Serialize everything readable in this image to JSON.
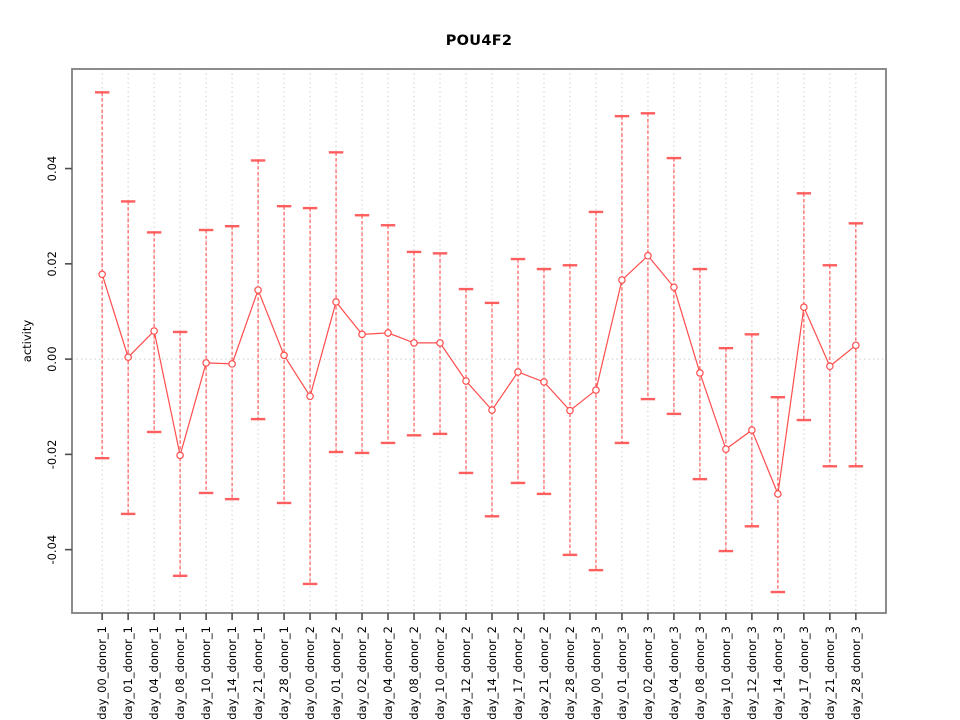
{
  "page": {
    "background": "#FFFFFF"
  },
  "chart_data": {
    "type": "line",
    "title": "POU4F2",
    "xlabel": "",
    "ylabel": "activity",
    "legend": "none",
    "marker": "open-circle",
    "error_bars": true,
    "grid": {
      "vertical": "dotted",
      "zero_line": "dotted",
      "horizontal": "off"
    },
    "ylim": [
      -0.0533,
      0.0609
    ],
    "yticks": [
      -0.04,
      -0.02,
      0,
      0.02,
      0.04
    ],
    "categories": [
      "day_00_donor_1",
      "day_01_donor_1",
      "day_04_donor_1",
      "day_08_donor_1",
      "day_10_donor_1",
      "day_14_donor_1",
      "day_21_donor_1",
      "day_28_donor_1",
      "day_00_donor_2",
      "day_01_donor_2",
      "day_02_donor_2",
      "day_04_donor_2",
      "day_08_donor_2",
      "day_10_donor_2",
      "day_12_donor_2",
      "day_14_donor_2",
      "day_17_donor_2",
      "day_21_donor_2",
      "day_28_donor_2",
      "day_00_donor_3",
      "day_01_donor_3",
      "day_02_donor_3",
      "day_04_donor_3",
      "day_08_donor_3",
      "day_10_donor_3",
      "day_12_donor_3",
      "day_14_donor_3",
      "day_17_donor_3",
      "day_21_donor_3",
      "day_28_donor_3"
    ],
    "series": [
      {
        "name": "POU4F2 activity",
        "values": [
          0.0178,
          0.0004,
          0.0059,
          -0.0202,
          -0.0008,
          -0.001,
          0.0145,
          0.0008,
          -0.0078,
          0.012,
          0.0052,
          0.0055,
          0.0034,
          0.0034,
          -0.0046,
          -0.0107,
          -0.0027,
          -0.0048,
          -0.0108,
          -0.0065,
          0.0166,
          0.0217,
          0.0151,
          -0.0029,
          -0.0189,
          -0.0149,
          -0.0283,
          0.0109,
          -0.0015,
          0.0029
        ],
        "lower": [
          -0.0208,
          -0.0325,
          -0.0153,
          -0.0455,
          -0.0281,
          -0.0294,
          -0.0126,
          -0.0302,
          -0.0472,
          -0.0195,
          -0.0197,
          -0.0176,
          -0.016,
          -0.0157,
          -0.0239,
          -0.033,
          -0.026,
          -0.0283,
          -0.0411,
          -0.0443,
          -0.0176,
          -0.0084,
          -0.0115,
          -0.0252,
          -0.0403,
          -0.0351,
          -0.0489,
          -0.0128,
          -0.0225,
          -0.0225
        ],
        "upper": [
          0.056,
          0.0331,
          0.0266,
          0.0057,
          0.0271,
          0.0279,
          0.0417,
          0.0321,
          0.0317,
          0.0434,
          0.0302,
          0.0281,
          0.0225,
          0.0222,
          0.0147,
          0.0118,
          0.021,
          0.0189,
          0.0197,
          0.0309,
          0.051,
          0.0516,
          0.0422,
          0.0189,
          0.0023,
          0.0052,
          -0.008,
          0.0348,
          0.0197,
          0.0285
        ]
      }
    ],
    "colors": {
      "series": "#FF4D4D",
      "grid": "#C8C8C8",
      "box": "#808080",
      "tick": "#4D4D4D",
      "text": "#000000",
      "background": "#FFFFFF"
    }
  }
}
